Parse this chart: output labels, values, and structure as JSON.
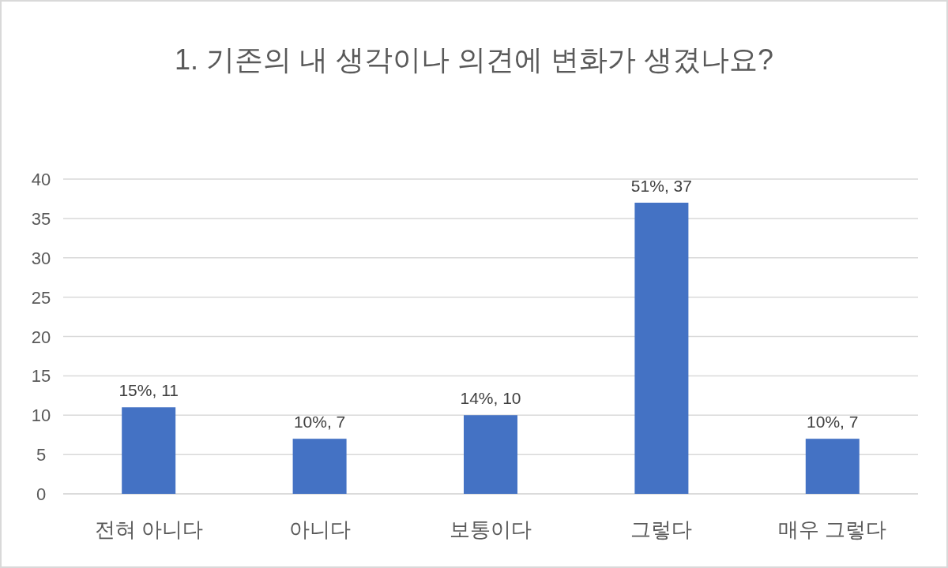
{
  "chart_data": {
    "type": "bar",
    "title": "1. 기존의 내 생각이나 의견에 변화가 생겼나요?",
    "categories": [
      "전혀 아니다",
      "아니다",
      "보통이다",
      "그렇다",
      "매우 그렇다"
    ],
    "values": [
      11,
      7,
      10,
      37,
      7
    ],
    "value_labels": [
      "15%, 11",
      "10%, 7",
      "14%, 10",
      "51%, 37",
      "10%, 7"
    ],
    "color": "#4472c4",
    "ylim": [
      0,
      40
    ],
    "yticks": [
      0,
      5,
      10,
      15,
      20,
      25,
      30,
      35,
      40
    ],
    "grid": "y"
  }
}
